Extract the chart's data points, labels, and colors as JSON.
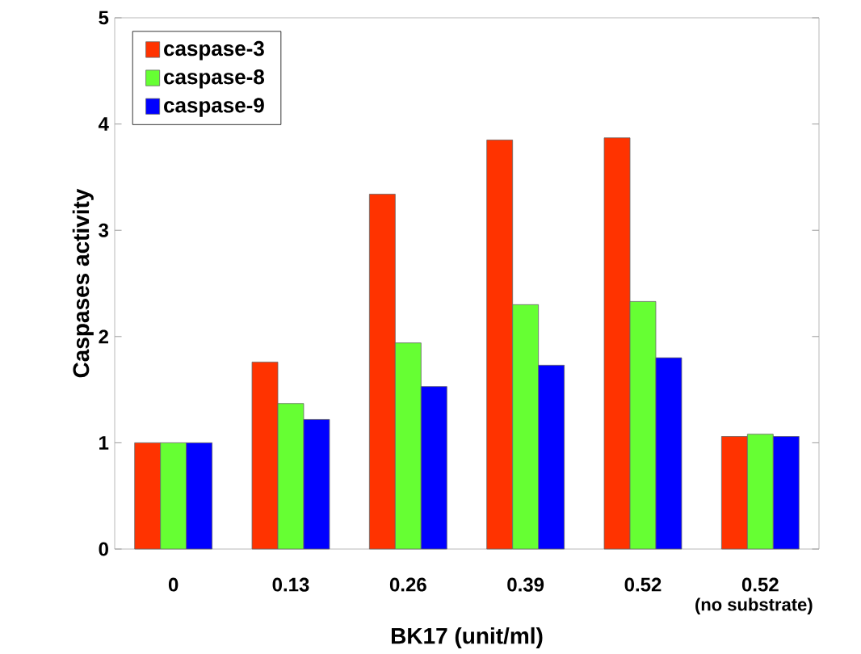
{
  "chart_data": {
    "type": "bar",
    "xlabel": "BK17 (unit/ml)",
    "ylabel": "Caspases activity",
    "categories": [
      "0",
      "0.13",
      "0.26",
      "0.39",
      "0.52",
      "0.52"
    ],
    "series": [
      {
        "name": "caspase-3",
        "color": "#ff3300",
        "values": [
          1.0,
          1.76,
          3.34,
          3.85,
          3.87,
          1.06
        ]
      },
      {
        "name": "caspase-8",
        "color": "#66ff33",
        "values": [
          1.0,
          1.37,
          1.94,
          2.3,
          2.33,
          1.08
        ]
      },
      {
        "name": "caspase-9",
        "color": "#0000ff",
        "values": [
          1.0,
          1.22,
          1.53,
          1.73,
          1.8,
          1.06
        ]
      }
    ],
    "ylim": [
      0,
      5
    ],
    "yticks": [
      0,
      1,
      2,
      3,
      4,
      5
    ],
    "grid": false,
    "legend": "top left",
    "annotations": [
      "(no substrate)"
    ]
  }
}
